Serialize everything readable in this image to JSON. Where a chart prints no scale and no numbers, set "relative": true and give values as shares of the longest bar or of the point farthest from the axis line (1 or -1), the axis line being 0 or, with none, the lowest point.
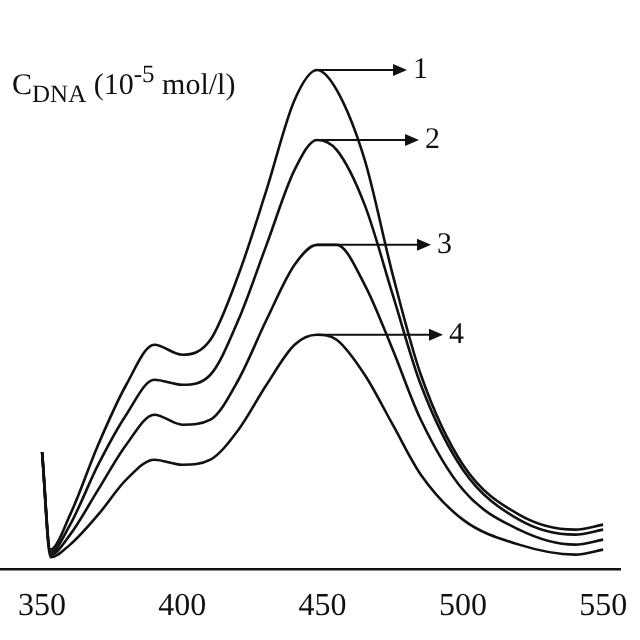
{
  "chart_data": {
    "type": "line",
    "relative": true,
    "ylabel": "C$_{DNA}$ (10$^{-5}$ mol/l)",
    "x": [
      350,
      353,
      360,
      370,
      380,
      390,
      400,
      410,
      420,
      430,
      440,
      448,
      455,
      465,
      475,
      485,
      500,
      520,
      540,
      550
    ],
    "xlim": [
      335,
      556
    ],
    "xticks": [
      350,
      400,
      450,
      500,
      550
    ],
    "tick_labels": "x",
    "grid": false,
    "legend": "top right",
    "marker": "none",
    "line_style": "solid",
    "series": [
      {
        "name": "1",
        "color": "#111111",
        "values": [
          0.235,
          0.04,
          0.11,
          0.25,
          0.37,
          0.45,
          0.43,
          0.46,
          0.59,
          0.76,
          0.94,
          1.0,
          0.96,
          0.82,
          0.59,
          0.39,
          0.21,
          0.11,
          0.08,
          0.09
        ]
      },
      {
        "name": "2",
        "color": "#111111",
        "values": [
          0.235,
          0.035,
          0.09,
          0.21,
          0.31,
          0.38,
          0.37,
          0.39,
          0.5,
          0.65,
          0.8,
          0.86,
          0.84,
          0.73,
          0.55,
          0.37,
          0.2,
          0.1,
          0.07,
          0.08
        ]
      },
      {
        "name": "3",
        "color": "#111111",
        "values": [
          0.235,
          0.03,
          0.07,
          0.16,
          0.25,
          0.31,
          0.29,
          0.3,
          0.38,
          0.5,
          0.61,
          0.65,
          0.65,
          0.57,
          0.44,
          0.3,
          0.16,
          0.08,
          0.05,
          0.06
        ]
      },
      {
        "name": "4",
        "color": "#111111",
        "values": [
          0.235,
          0.025,
          0.05,
          0.11,
          0.18,
          0.22,
          0.21,
          0.22,
          0.28,
          0.37,
          0.45,
          0.47,
          0.46,
          0.39,
          0.29,
          0.19,
          0.1,
          0.05,
          0.03,
          0.04
        ]
      }
    ]
  }
}
